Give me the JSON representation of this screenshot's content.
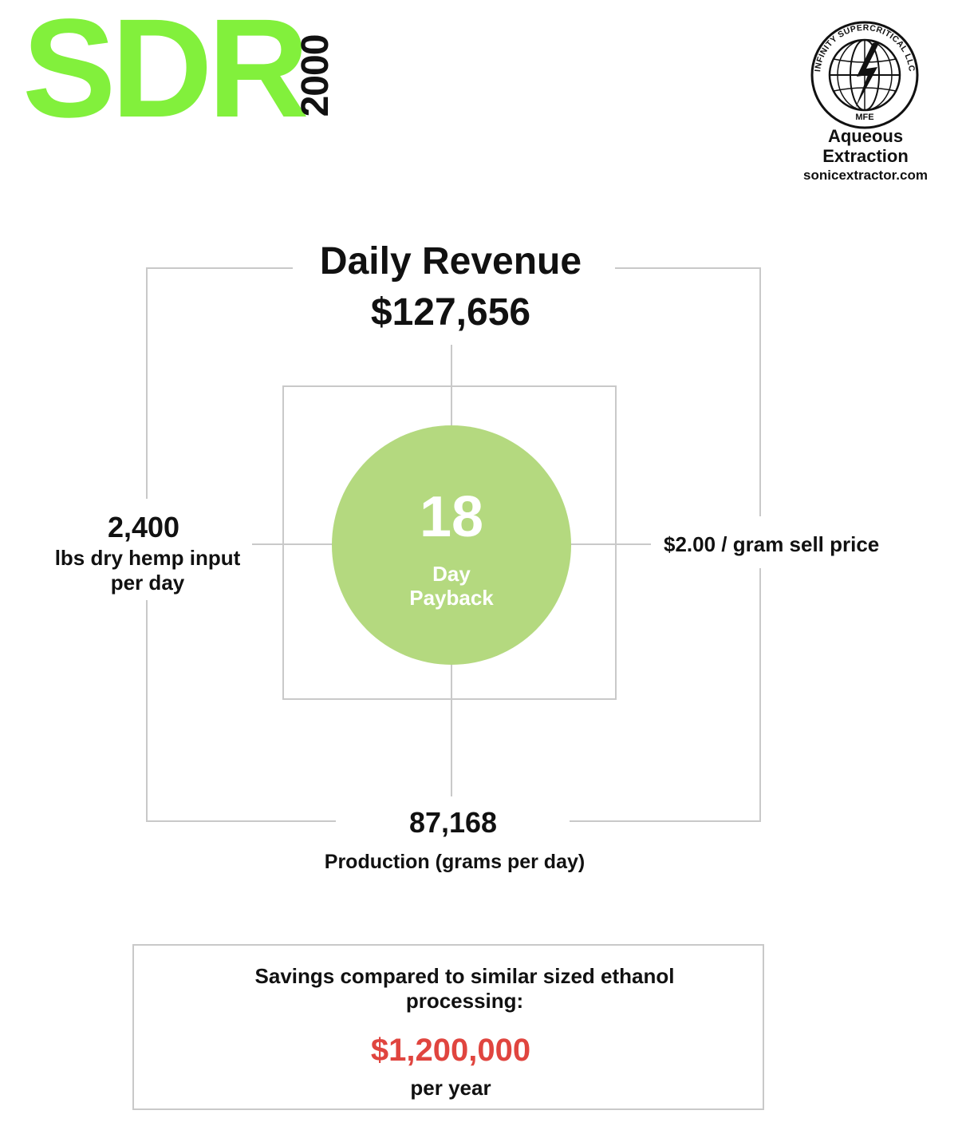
{
  "header": {
    "title": "SDR",
    "subtitle": "2000"
  },
  "logo": {
    "ring_text": "INFINITY SUPERCRITICAL LLC",
    "bottom_text": "MFE",
    "caption_line1": "Aqueous",
    "caption_line2": "Extraction",
    "url": "sonicextractor.com"
  },
  "diagram": {
    "revenue_title": "Daily Revenue",
    "revenue_value": "$127,656",
    "payback_value": "18",
    "payback_label_line1": "Day",
    "payback_label_line2": "Payback",
    "input_value": "2,400",
    "input_label_line1": "lbs dry hemp input",
    "input_label_line2": "per day",
    "price_text": "$2.00 / gram sell price",
    "production_value": "87,168",
    "production_label": "Production (grams per day)"
  },
  "savings": {
    "text_line1": "Savings compared to similar sized ethanol",
    "text_line2": "processing:",
    "value": "$1,200,000",
    "unit": "per year"
  },
  "colors": {
    "accent_green": "#82f03c",
    "circle_green": "#b4d97f",
    "line_gray": "#c9c9c9",
    "savings_red": "#e0453f"
  }
}
